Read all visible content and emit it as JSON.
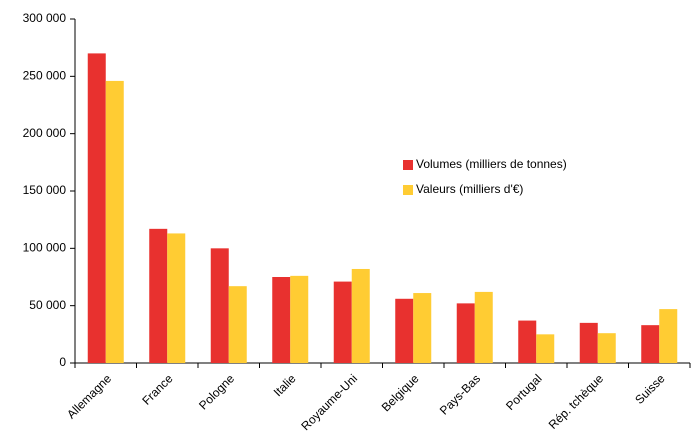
{
  "chart_data": {
    "type": "bar",
    "categories": [
      "Allemagne",
      "France",
      "Pologne",
      "Italie",
      "Royaume-Uni",
      "Belgique",
      "Pays-Bas",
      "Portugal",
      "Rép. tchèque",
      "Suisse"
    ],
    "series": [
      {
        "name": "Volumes (milliers de tonnes)",
        "color": "#e8312f",
        "values": [
          270000,
          117000,
          100000,
          75000,
          71000,
          56000,
          52000,
          37000,
          35000,
          33000
        ]
      },
      {
        "name": "Valeurs (milliers d'€)",
        "color": "#ffcc33",
        "values": [
          246000,
          113000,
          67000,
          76000,
          82000,
          61000,
          62000,
          25000,
          26000,
          47000
        ]
      }
    ],
    "ylim": [
      0,
      300000
    ],
    "yticks": [
      0,
      {
        "value": 50000,
        "label": "50 000"
      },
      {
        "value": 100000,
        "label": "100 000"
      },
      {
        "value": 150000,
        "label": "150 000"
      },
      {
        "value": 200000,
        "label": "200 000"
      },
      {
        "value": 250000,
        "label": "250 000"
      },
      {
        "value": 300000,
        "label": "300 000"
      }
    ],
    "grid": false
  }
}
